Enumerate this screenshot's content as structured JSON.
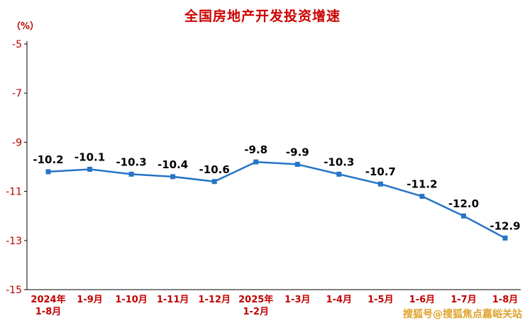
{
  "page": {
    "watermark": "搜狐号@搜狐焦点嘉峪关站"
  },
  "chart_data": {
    "type": "line",
    "title": "全国房地产开发投资增速",
    "ylabel": "（%）",
    "xlabel": "",
    "categories": [
      [
        "2024年",
        "1-8月"
      ],
      [
        "1-9月"
      ],
      [
        "1-10月"
      ],
      [
        "1-11月"
      ],
      [
        "1-12月"
      ],
      [
        "2025年",
        "1-2月"
      ],
      [
        "1-3月"
      ],
      [
        "1-4月"
      ],
      [
        "1-5月"
      ],
      [
        "1-6月"
      ],
      [
        "1-7月"
      ],
      [
        "1-8月"
      ]
    ],
    "values": [
      -10.2,
      -10.1,
      -10.3,
      -10.4,
      -10.6,
      -9.8,
      -9.9,
      -10.3,
      -10.7,
      -11.2,
      -12.0,
      -12.9
    ],
    "point_labels": [
      "-10.2",
      "-10.1",
      "-10.3",
      "-10.4",
      "-10.6",
      "-9.8",
      "-9.9",
      "-10.3",
      "-10.7",
      "-11.2",
      "-12.0",
      "-12.9"
    ],
    "ylim": [
      -15,
      -5
    ],
    "yticks": [
      -5,
      -7,
      -9,
      -11,
      -13,
      -15
    ],
    "ytick_labels": [
      "-5",
      "-7",
      "-9",
      "-11",
      "-13",
      "-15"
    ],
    "grid": false,
    "legend_position": "none",
    "colors": {
      "line": "#2674C5",
      "marker": "#2674C5",
      "data_label": "#000000",
      "axis_line": "#000000",
      "axis_text": "#C00000",
      "title": "#CC0000"
    }
  }
}
